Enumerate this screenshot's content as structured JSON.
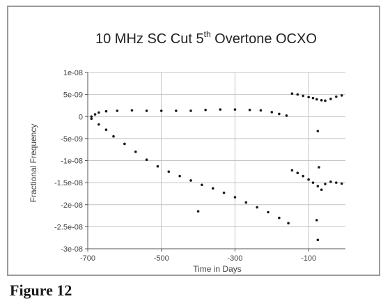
{
  "caption": "Figure 12",
  "chart_data": {
    "type": "scatter",
    "title_main": "10 MHz SC Cut 5",
    "title_sup": "th",
    "title_rest": " Overtone OCXO",
    "xlabel": "Time in Days",
    "ylabel": "Fractional Frequency",
    "xlim": [
      -700,
      0
    ],
    "ylim": [
      -3e-08,
      1e-08
    ],
    "x_ticks": [
      {
        "v": -700,
        "label": "-700"
      },
      {
        "v": -500,
        "label": "-500"
      },
      {
        "v": -300,
        "label": "-300"
      },
      {
        "v": -100,
        "label": "-100"
      }
    ],
    "y_ticks": [
      {
        "v": 1e-08,
        "label": "1e-08"
      },
      {
        "v": 5e-09,
        "label": "5e-09"
      },
      {
        "v": 0,
        "label": "0"
      },
      {
        "v": -5e-09,
        "label": "-5e-09"
      },
      {
        "v": -1e-08,
        "label": "-1e-08"
      },
      {
        "v": -1.5e-08,
        "label": "-1.5e-08"
      },
      {
        "v": -2e-08,
        "label": "-2e-08"
      },
      {
        "v": -2.5e-08,
        "label": "-2.5e-08"
      },
      {
        "v": -3e-08,
        "label": "-3e-08"
      }
    ],
    "grid": true,
    "colors": {
      "marker": "#1a1a1a",
      "grid": "#c4c4c4",
      "axis": "#555555",
      "frame": "#9a9a9a"
    },
    "series": [
      {
        "values": [
          [
            -690,
            0
          ],
          [
            -680,
            5e-10
          ],
          [
            -670,
            9e-10
          ],
          [
            -650,
            1.2e-09
          ],
          [
            -620,
            1.3e-09
          ],
          [
            -580,
            1.4e-09
          ],
          [
            -540,
            1.3e-09
          ],
          [
            -500,
            1.3e-09
          ],
          [
            -460,
            1.3e-09
          ],
          [
            -420,
            1.3e-09
          ],
          [
            -380,
            1.5e-09
          ],
          [
            -340,
            1.6e-09
          ],
          [
            -300,
            1.6e-09
          ],
          [
            -260,
            1.5e-09
          ],
          [
            -230,
            1.4e-09
          ],
          [
            -200,
            1e-09
          ],
          [
            -180,
            6e-10
          ],
          [
            -160,
            2e-10
          ]
        ]
      },
      {
        "values": [
          [
            -690,
            -5e-10
          ],
          [
            -670,
            -1.8e-09
          ],
          [
            -650,
            -3e-09
          ],
          [
            -630,
            -4.5e-09
          ],
          [
            -600,
            -6.2e-09
          ],
          [
            -570,
            -8e-09
          ],
          [
            -540,
            -9.8e-09
          ],
          [
            -510,
            -1.13e-08
          ],
          [
            -480,
            -1.25e-08
          ],
          [
            -450,
            -1.35e-08
          ],
          [
            -420,
            -1.45e-08
          ],
          [
            -390,
            -1.55e-08
          ],
          [
            -360,
            -1.63e-08
          ],
          [
            -330,
            -1.73e-08
          ],
          [
            -300,
            -1.83e-08
          ],
          [
            -270,
            -1.95e-08
          ],
          [
            -240,
            -2.06e-08
          ],
          [
            -210,
            -2.17e-08
          ],
          [
            -180,
            -2.3e-08
          ],
          [
            -155,
            -2.42e-08
          ]
        ]
      },
      {
        "values": [
          [
            -145,
            5.2e-09
          ],
          [
            -130,
            5e-09
          ],
          [
            -115,
            4.7e-09
          ],
          [
            -100,
            4.4e-09
          ],
          [
            -88,
            4.2e-09
          ],
          [
            -78,
            3.9e-09
          ],
          [
            -65,
            3.7e-09
          ],
          [
            -55,
            3.6e-09
          ],
          [
            -40,
            4e-09
          ],
          [
            -25,
            4.5e-09
          ],
          [
            -10,
            4.8e-09
          ]
        ]
      },
      {
        "values": [
          [
            -145,
            -1.22e-08
          ],
          [
            -130,
            -1.28e-08
          ],
          [
            -115,
            -1.35e-08
          ],
          [
            -100,
            -1.43e-08
          ],
          [
            -88,
            -1.5e-08
          ],
          [
            -75,
            -1.58e-08
          ],
          [
            -65,
            -1.66e-08
          ],
          [
            -55,
            -1.53e-08
          ],
          [
            -40,
            -1.48e-08
          ],
          [
            -25,
            -1.5e-08
          ],
          [
            -10,
            -1.52e-08
          ]
        ]
      },
      {
        "values": [
          [
            -75,
            -3.3e-09
          ],
          [
            -75,
            -2.8e-08
          ],
          [
            -400,
            -2.15e-08
          ],
          [
            -72,
            -1.15e-08
          ],
          [
            -78,
            -2.35e-08
          ]
        ]
      }
    ]
  }
}
